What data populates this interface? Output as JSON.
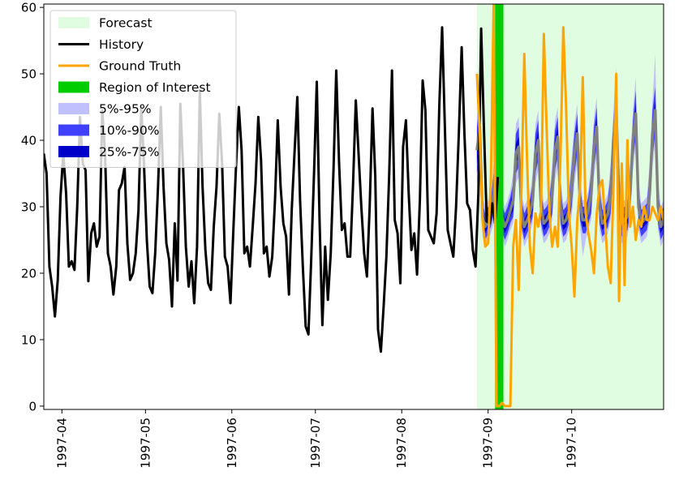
{
  "chart_data": {
    "type": "line",
    "title": "",
    "xlabel": "",
    "ylabel": "",
    "ylim": [
      -0.5,
      60.5
    ],
    "y_ticks": [
      "0",
      "10",
      "20",
      "30",
      "40",
      "50",
      "60"
    ],
    "y_tick_values": [
      0,
      10,
      20,
      30,
      40,
      50,
      60
    ],
    "x_ticks": [
      "1997-04",
      "1997-05",
      "1997-06",
      "1997-07",
      "1997-08",
      "1997-09",
      "1997-10"
    ],
    "x_tick_days": [
      0,
      30,
      61,
      91,
      122,
      153,
      183
    ],
    "x_range_days": [
      -6.5,
      216
    ],
    "history_start_day": -6.5,
    "history": [
      38.0,
      35.0,
      21.0,
      18.0,
      13.5,
      19.0,
      31.5,
      38.0,
      32.0,
      21.0,
      21.8,
      20.5,
      30.0,
      43.5,
      36.5,
      35.5,
      18.8,
      26.0,
      27.5,
      24.0,
      25.5,
      44.5,
      38.0,
      23.0,
      21.0,
      16.8,
      21.0,
      32.5,
      33.5,
      36.0,
      24.5,
      19.0,
      20.0,
      23.0,
      29.5,
      45.0,
      36.0,
      25.0,
      18.0,
      17.0,
      23.0,
      33.0,
      45.0,
      33.0,
      24.5,
      22.0,
      15.0,
      27.5,
      18.9,
      45.5,
      36.0,
      24.0,
      18.0,
      21.8,
      15.5,
      24.0,
      47.5,
      33.0,
      23.5,
      18.5,
      17.5,
      27.0,
      33.0,
      44.0,
      36.5,
      22.5,
      21.0,
      15.5,
      26.0,
      36.0,
      45.0,
      38.5,
      23.0,
      24.0,
      21.0,
      27.0,
      33.5,
      43.5,
      37.0,
      23.0,
      24.0,
      19.5,
      22.5,
      31.0,
      43.0,
      33.0,
      27.5,
      25.5,
      16.8,
      29.5,
      38.0,
      46.5,
      31.0,
      21.0,
      12.0,
      10.8,
      22.0,
      35.0,
      48.8,
      28.0,
      12.2,
      24.0,
      16.0,
      23.0,
      35.5,
      50.5,
      36.5,
      26.5,
      27.5,
      22.5,
      22.5,
      33.0,
      46.0,
      38.0,
      30.0,
      23.0,
      19.5,
      30.0,
      44.8,
      34.5,
      11.5,
      8.2,
      15.0,
      22.5,
      35.0,
      50.5,
      28.0,
      26.0,
      18.5,
      39.0,
      43.0,
      32.0,
      23.5,
      26.0,
      19.8,
      31.0,
      49.0,
      44.5,
      26.5,
      25.5,
      24.5,
      29.0,
      45.5,
      57.0,
      41.5,
      26.5,
      24.5,
      22.5,
      30.0,
      41.0,
      54.0,
      41.0,
      30.5,
      29.5,
      23.5,
      21.0,
      32.0,
      56.8,
      42.0,
      27.8,
      27.5,
      30.5,
      27.5,
      34.5
    ],
    "forecast_start_day": 149,
    "forecast_end_day": 216,
    "region_of_interest_days": [
      155.5,
      158.5
    ],
    "forecast": {
      "x_days": [
        149,
        150,
        151,
        152,
        153,
        154,
        155,
        156,
        157,
        158,
        159,
        160,
        161,
        162,
        163,
        164,
        165,
        166,
        167,
        168,
        169,
        170,
        171,
        172,
        173,
        174,
        175,
        176,
        177,
        178,
        179,
        180,
        181,
        182,
        183,
        184,
        185,
        186,
        187,
        188,
        189,
        190,
        191,
        192,
        193,
        194,
        195,
        196,
        197,
        198,
        199,
        200,
        201,
        202,
        203,
        204,
        205,
        206,
        207,
        208,
        209,
        210,
        211,
        212,
        213,
        214,
        215,
        216
      ],
      "median": [
        38.5,
        42.0,
        28.5,
        27.0,
        28.0,
        29.0,
        32.0,
        38.0,
        36.0,
        28.5,
        27.0,
        28.0,
        29.5,
        31.0,
        38.0,
        39.0,
        29.0,
        27.0,
        28.0,
        29.0,
        31.0,
        38.0,
        40.0,
        30.0,
        27.5,
        28.0,
        29.0,
        32.0,
        38.5,
        40.5,
        30.0,
        27.5,
        28.0,
        29.5,
        33.0,
        38.0,
        41.0,
        30.5,
        28.0,
        28.0,
        29.5,
        32.0,
        39.0,
        42.0,
        30.0,
        27.5,
        28.0,
        29.0,
        32.0,
        40.0,
        45.0,
        31.0,
        27.5,
        28.0,
        28.5,
        32.0,
        40.0,
        44.0,
        30.0,
        27.5,
        28.0,
        28.5,
        32.0,
        41.0,
        44.5,
        30.0,
        27.0,
        28.0
      ],
      "q25": [
        36.5,
        40.0,
        27.5,
        26.0,
        27.0,
        28.0,
        30.5,
        36.5,
        34.5,
        27.5,
        26.0,
        27.0,
        28.5,
        29.5,
        36.5,
        37.5,
        28.0,
        26.0,
        27.0,
        28.0,
        29.5,
        36.5,
        38.5,
        28.5,
        26.5,
        27.0,
        28.0,
        30.5,
        37.0,
        39.0,
        28.5,
        26.5,
        27.0,
        28.5,
        31.5,
        36.5,
        39.5,
        29.0,
        27.0,
        27.0,
        28.5,
        30.5,
        37.5,
        40.5,
        28.5,
        26.5,
        27.0,
        28.0,
        30.5,
        38.5,
        43.0,
        29.5,
        26.5,
        27.0,
        27.5,
        30.5,
        38.5,
        42.5,
        28.5,
        26.5,
        27.0,
        27.5,
        30.5,
        39.5,
        43.0,
        28.5,
        26.0,
        27.0
      ],
      "q75": [
        40.5,
        44.0,
        29.5,
        28.0,
        29.0,
        30.0,
        33.5,
        39.5,
        37.5,
        29.5,
        28.0,
        29.0,
        30.5,
        32.5,
        39.5,
        40.5,
        30.0,
        28.0,
        29.0,
        30.0,
        32.5,
        39.5,
        41.5,
        31.5,
        28.5,
        29.0,
        30.0,
        33.5,
        40.0,
        42.0,
        31.5,
        28.5,
        29.0,
        30.5,
        34.5,
        39.5,
        42.5,
        32.0,
        29.0,
        29.0,
        30.5,
        33.5,
        40.5,
        43.5,
        31.5,
        28.5,
        29.0,
        30.0,
        33.5,
        41.5,
        47.0,
        32.5,
        28.5,
        29.0,
        29.5,
        33.5,
        41.5,
        45.5,
        31.5,
        28.5,
        29.0,
        29.5,
        33.5,
        42.5,
        46.0,
        31.5,
        28.0,
        29.0
      ],
      "q10": [
        35.0,
        38.0,
        26.5,
        25.0,
        26.0,
        27.0,
        29.0,
        35.0,
        33.0,
        26.5,
        25.0,
        26.0,
        27.5,
        28.5,
        35.0,
        36.0,
        27.0,
        25.0,
        26.0,
        27.0,
        28.5,
        35.0,
        37.0,
        27.5,
        25.5,
        26.0,
        27.0,
        29.0,
        35.5,
        37.5,
        27.5,
        25.5,
        26.0,
        27.5,
        30.0,
        35.0,
        38.0,
        28.0,
        26.0,
        26.0,
        27.5,
        29.0,
        36.0,
        39.0,
        27.5,
        25.5,
        26.0,
        27.0,
        29.0,
        37.0,
        41.0,
        28.0,
        25.5,
        26.0,
        26.5,
        29.0,
        37.0,
        40.5,
        27.5,
        25.5,
        26.0,
        26.5,
        29.0,
        37.5,
        41.0,
        27.5,
        25.0,
        26.0
      ],
      "q90": [
        42.0,
        46.0,
        30.5,
        29.0,
        30.0,
        31.0,
        35.0,
        41.0,
        39.0,
        30.5,
        29.0,
        30.0,
        31.5,
        33.5,
        41.0,
        42.0,
        31.0,
        29.0,
        30.0,
        31.0,
        33.5,
        41.0,
        43.0,
        32.5,
        29.5,
        30.0,
        31.0,
        35.0,
        41.5,
        43.5,
        32.5,
        29.5,
        30.0,
        31.5,
        36.0,
        41.0,
        44.0,
        33.0,
        30.0,
        30.0,
        31.5,
        35.0,
        42.0,
        45.0,
        32.5,
        29.5,
        30.0,
        31.0,
        35.0,
        43.0,
        49.0,
        34.0,
        29.5,
        30.0,
        30.5,
        35.0,
        43.0,
        47.5,
        32.5,
        29.5,
        30.0,
        30.5,
        35.0,
        44.5,
        48.0,
        32.5,
        29.0,
        30.0
      ],
      "q05": [
        33.5,
        36.5,
        25.5,
        24.0,
        25.0,
        26.0,
        27.5,
        33.5,
        31.5,
        25.5,
        24.0,
        25.0,
        26.5,
        27.5,
        33.5,
        34.5,
        26.0,
        24.0,
        25.0,
        26.0,
        27.5,
        33.5,
        35.5,
        26.5,
        24.5,
        25.0,
        26.0,
        28.0,
        34.0,
        36.0,
        26.5,
        24.5,
        25.0,
        26.5,
        28.5,
        33.5,
        36.5,
        27.0,
        22.5,
        25.0,
        26.5,
        28.0,
        34.5,
        37.5,
        26.5,
        24.5,
        25.0,
        26.0,
        28.0,
        35.5,
        39.5,
        27.0,
        24.5,
        25.0,
        25.5,
        28.0,
        35.5,
        39.0,
        26.5,
        24.5,
        25.0,
        25.5,
        28.0,
        36.0,
        39.5,
        26.5,
        24.0,
        25.0
      ],
      "q95": [
        43.5,
        47.5,
        31.5,
        30.0,
        31.0,
        32.0,
        36.5,
        42.5,
        40.5,
        31.5,
        30.0,
        31.0,
        32.5,
        35.0,
        42.5,
        43.5,
        32.0,
        30.0,
        31.0,
        32.0,
        35.0,
        42.5,
        44.5,
        34.0,
        30.5,
        31.0,
        32.0,
        36.5,
        43.0,
        45.0,
        34.0,
        30.5,
        31.0,
        32.5,
        37.5,
        42.5,
        45.5,
        34.5,
        31.0,
        31.0,
        32.5,
        36.5,
        43.5,
        46.5,
        34.0,
        30.5,
        31.0,
        32.0,
        36.5,
        44.5,
        51.0,
        35.0,
        30.5,
        31.0,
        31.5,
        36.5,
        44.5,
        49.5,
        34.0,
        30.5,
        31.0,
        31.5,
        36.5,
        46.0,
        53.0,
        34.0,
        30.0,
        31.0
      ]
    },
    "ground_truth": {
      "x_days": [
        149,
        150,
        151,
        152,
        153,
        154,
        155,
        156,
        157,
        158,
        159,
        160,
        161,
        162,
        163,
        164,
        165,
        166,
        167,
        168,
        169,
        170,
        171,
        172,
        173,
        174,
        175,
        176,
        177,
        178,
        179,
        180,
        181,
        182,
        183,
        184,
        185,
        186,
        187,
        188,
        189,
        190,
        191,
        192,
        193,
        194,
        195,
        196,
        197,
        198,
        199,
        200,
        201,
        202,
        203,
        204,
        205,
        206,
        207,
        208,
        209,
        210,
        211,
        212,
        213,
        214,
        215,
        216
      ],
      "values": [
        50.0,
        41.0,
        28.0,
        24.0,
        24.5,
        34.0,
        60.5,
        0.0,
        0.0,
        0.5,
        0.0,
        0.0,
        0.0,
        24.0,
        28.0,
        17.5,
        33.0,
        53.0,
        37.0,
        24.0,
        20.0,
        29.0,
        27.0,
        29.5,
        56.0,
        42.0,
        29.0,
        24.0,
        27.0,
        24.0,
        38.0,
        57.0,
        45.0,
        29.0,
        24.0,
        16.5,
        28.0,
        33.0,
        49.5,
        29.0,
        26.0,
        23.5,
        20.0,
        29.0,
        33.0,
        34.0,
        27.5,
        21.0,
        18.5,
        33.0,
        50.0,
        15.8,
        36.5,
        18.2,
        40.0,
        27.0,
        30.0,
        25.0,
        28.0,
        27.0,
        30.0,
        28.0,
        28.0,
        30.0,
        29.0,
        28.0,
        30.0,
        28.0
      ]
    },
    "legend": {
      "placement": "top-left",
      "items": [
        {
          "label": "Forecast",
          "color": "#e1fde1",
          "kind": "patch"
        },
        {
          "label": "History",
          "color": "#000000",
          "kind": "line"
        },
        {
          "label": "Ground Truth",
          "color": "#ffa500",
          "kind": "line"
        },
        {
          "label": "Region of Interest",
          "color": "#00cd00",
          "kind": "patch"
        },
        {
          "label": "5%-95%",
          "color": "#c0c0ff",
          "kind": "patch"
        },
        {
          "label": "10%-90%",
          "color": "#4040ff",
          "kind": "patch"
        },
        {
          "label": "25%-75%",
          "color": "#0000c8",
          "kind": "patch"
        }
      ]
    },
    "colors": {
      "forecast_bg": "#e1fde1",
      "history": "#000000",
      "ground_truth": "#ffa500",
      "roi": "#00cd00",
      "band_05_95": "#c0c0ff",
      "band_10_90": "#4040ff",
      "band_25_75": "#0000c8",
      "median": "#808080"
    }
  }
}
